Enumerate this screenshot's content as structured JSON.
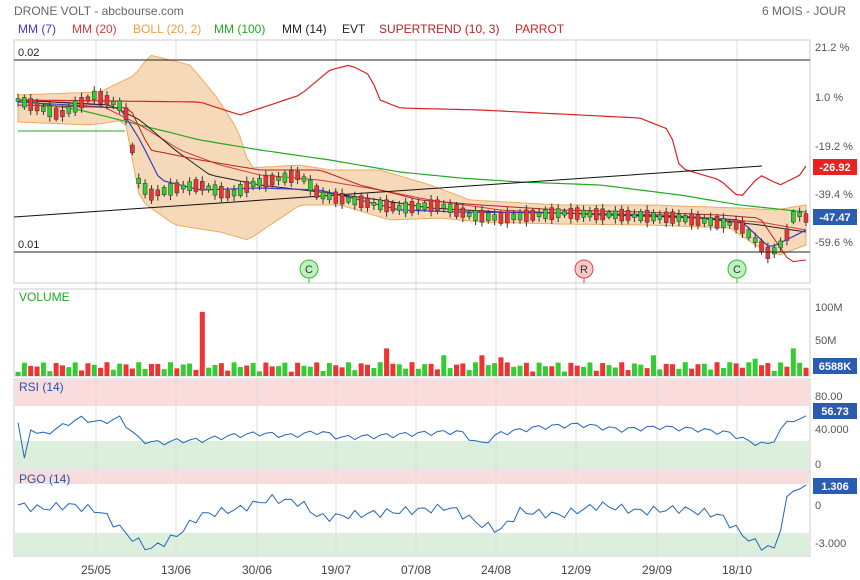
{
  "header": {
    "title": "DRONE VOLT - abcbourse.com",
    "period": "6 MOIS - JOUR"
  },
  "legend": [
    {
      "label": "MM (7)",
      "color": "#3a3ad0"
    },
    {
      "label": "MM (20)",
      "color": "#d43a3a"
    },
    {
      "label": "BOLL (20, 2)",
      "color": "#f0a040"
    },
    {
      "label": "MM (100)",
      "color": "#22aa22"
    },
    {
      "label": "MM (14)",
      "color": "#222222"
    },
    {
      "label": "EVT",
      "color": "#222222"
    },
    {
      "label": "SUPERTREND (10, 3)",
      "color": "#b82222"
    },
    {
      "label": "PARROT",
      "color": "#d42222"
    }
  ],
  "colors": {
    "up": "#33cc33",
    "down": "#ee3333",
    "rsi_line": "#2266bb",
    "pgo_line": "#2266bb",
    "band_fill": "#f6d9b8",
    "band_edge": "#eeaa60",
    "perf_line": "#dd2222",
    "grid": "#dddddd"
  },
  "chart_data": [
    {
      "type": "candlestick",
      "panel": "price",
      "price_levels": [
        "0.02",
        "0.01"
      ],
      "right_axis_ticks": [
        "21.2 %",
        "1.0 %",
        "-19.2 %",
        "-39.4 %",
        "-59.6 %"
      ],
      "right_axis_values": [
        21.2,
        1.0,
        -19.2,
        -39.4,
        -59.6
      ],
      "last_badges": [
        {
          "label": "-26.92",
          "color": "#dd2222"
        },
        {
          "label": "-47.47",
          "color": "#2a5db0"
        }
      ],
      "events": [
        {
          "label": "C",
          "color": "#33bb33"
        },
        {
          "label": "R",
          "color": "#dd4444"
        },
        {
          "label": "C",
          "color": "#33bb33"
        }
      ],
      "x_tick_labels": [
        "25/05",
        "13/06",
        "30/06",
        "19/07",
        "07/08",
        "24/08",
        "12/09",
        "29/09",
        "18/10"
      ]
    },
    {
      "type": "bar",
      "panel": "volume",
      "title": "VOLUME",
      "ticks": [
        "100M",
        "50M"
      ],
      "tick_values": [
        100,
        50
      ],
      "last_badge": "6588K"
    },
    {
      "type": "line",
      "panel": "rsi",
      "title": "RSI (14)",
      "ticks": [
        "80.00",
        "40.000",
        "0"
      ],
      "tick_values": [
        80,
        40,
        0
      ],
      "last_badge": "56.73"
    },
    {
      "type": "line",
      "panel": "pgo",
      "title": "PGO (14)",
      "ticks": [
        "0",
        "-3.000"
      ],
      "tick_values": [
        0,
        -3
      ],
      "last_badge": "1.306"
    }
  ]
}
